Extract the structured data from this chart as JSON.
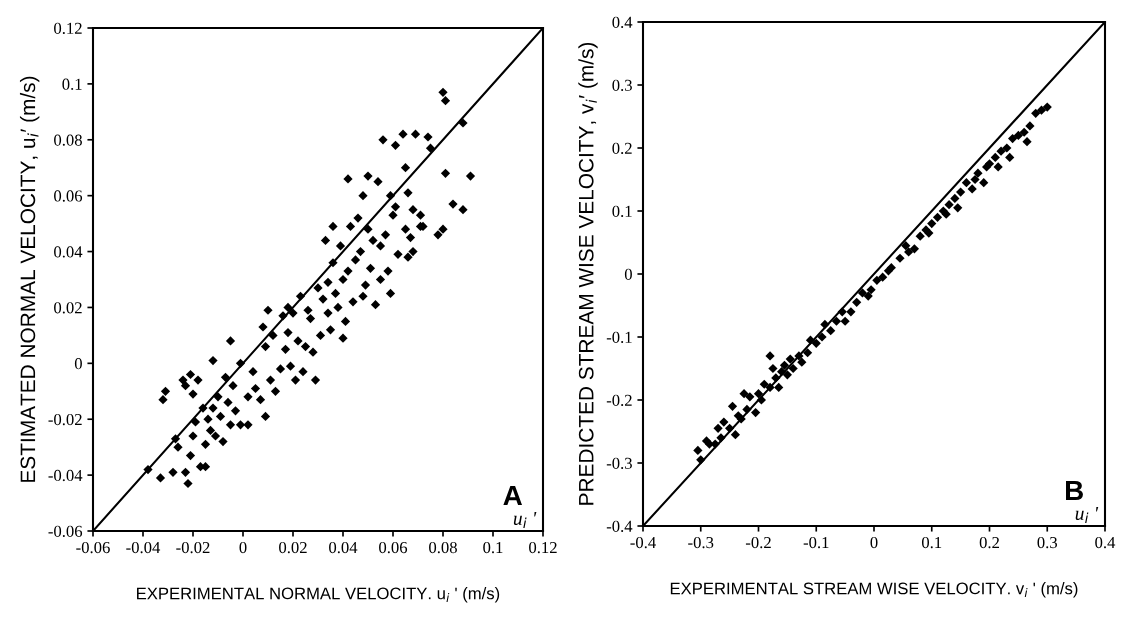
{
  "chart_data": [
    {
      "type": "scatter",
      "xlabel": "EXPERIMENTAL NORMAL VELOCITY. u$_{i}$ ' (m/s)",
      "ylabel": "ESTIMATED NORMAL VELOCITY, u$_{i}$′ (m/s)",
      "annotations": [
        "A",
        "u$_{i}$ '"
      ],
      "grid": false,
      "legend": false,
      "xlim": [
        -0.06,
        0.12
      ],
      "ylim": [
        -0.06,
        0.12
      ],
      "xticks": [
        -0.06,
        -0.04,
        -0.02,
        0,
        0.02,
        0.04,
        0.06,
        0.08,
        0.1,
        0.12
      ],
      "yticks": [
        -0.06,
        -0.04,
        -0.02,
        0,
        0.02,
        0.04,
        0.06,
        0.08,
        0.1,
        0.12
      ],
      "series": [
        {
          "color": "#000000",
          "marker": "diamond",
          "x": [
            -0.038,
            -0.033,
            -0.032,
            -0.031,
            -0.028,
            -0.027,
            -0.026,
            -0.024,
            -0.023,
            -0.023,
            -0.022,
            -0.021,
            -0.02,
            -0.021,
            -0.02,
            -0.019,
            -0.018,
            -0.017,
            -0.016,
            -0.015,
            -0.015,
            -0.014,
            -0.013,
            -0.012,
            -0.012,
            -0.011,
            -0.01,
            -0.009,
            -0.008,
            -0.007,
            -0.006,
            -0.005,
            -0.005,
            -0.004,
            -0.003,
            -0.001,
            -0.001,
            0.002,
            0.002,
            0.004,
            0.005,
            0.007,
            0.008,
            0.009,
            0.009,
            0.01,
            0.011,
            0.012,
            0.013,
            0.015,
            0.016,
            0.017,
            0.018,
            0.018,
            0.019,
            0.02,
            0.021,
            0.022,
            0.023,
            0.024,
            0.025,
            0.026,
            0.027,
            0.028,
            0.029,
            0.03,
            0.031,
            0.032,
            0.033,
            0.034,
            0.034,
            0.035,
            0.036,
            0.036,
            0.037,
            0.038,
            0.039,
            0.04,
            0.04,
            0.041,
            0.042,
            0.042,
            0.043,
            0.044,
            0.045,
            0.046,
            0.047,
            0.048,
            0.048,
            0.049,
            0.05,
            0.05,
            0.051,
            0.052,
            0.053,
            0.054,
            0.055,
            0.055,
            0.056,
            0.057,
            0.058,
            0.059,
            0.059,
            0.06,
            0.061,
            0.061,
            0.062,
            0.064,
            0.065,
            0.065,
            0.066,
            0.066,
            0.067,
            0.068,
            0.068,
            0.069,
            0.071,
            0.071,
            0.072,
            0.074,
            0.075,
            0.078,
            0.08,
            0.08,
            0.081,
            0.081,
            0.084,
            0.088,
            0.088,
            0.091
          ],
          "values": [
            -0.038,
            -0.041,
            -0.013,
            -0.01,
            -0.039,
            -0.027,
            -0.03,
            -0.006,
            -0.008,
            -0.039,
            -0.043,
            -0.004,
            -0.011,
            -0.033,
            -0.026,
            -0.021,
            -0.006,
            -0.037,
            -0.016,
            -0.029,
            -0.037,
            -0.02,
            -0.024,
            -0.016,
            0.001,
            -0.026,
            -0.012,
            -0.019,
            -0.028,
            -0.005,
            -0.014,
            0.008,
            -0.022,
            -0.008,
            -0.017,
            -0.022,
            0.0,
            -0.012,
            -0.022,
            -0.003,
            -0.009,
            -0.013,
            0.013,
            0.006,
            -0.019,
            0.019,
            -0.006,
            0.01,
            -0.01,
            -0.002,
            0.017,
            0.005,
            0.011,
            0.02,
            -0.001,
            0.018,
            -0.006,
            0.008,
            0.024,
            -0.003,
            0.006,
            0.019,
            0.016,
            0.004,
            -0.006,
            0.027,
            0.01,
            0.023,
            0.044,
            0.029,
            0.018,
            0.012,
            0.049,
            0.036,
            0.025,
            0.02,
            0.042,
            0.009,
            0.03,
            0.015,
            0.033,
            0.066,
            0.049,
            0.022,
            0.037,
            0.052,
            0.04,
            0.06,
            0.024,
            0.028,
            0.067,
            0.048,
            0.034,
            0.044,
            0.021,
            0.065,
            0.042,
            0.03,
            0.08,
            0.046,
            0.033,
            0.06,
            0.025,
            0.053,
            0.078,
            0.056,
            0.039,
            0.082,
            0.048,
            0.07,
            0.038,
            0.061,
            0.045,
            0.055,
            0.04,
            0.082,
            0.049,
            0.053,
            0.049,
            0.081,
            0.077,
            0.046,
            0.048,
            0.097,
            0.094,
            0.068,
            0.057,
            0.086,
            0.055,
            0.067
          ]
        },
        {
          "type": "line",
          "color": "#000000",
          "x": [
            -0.06,
            0.12
          ],
          "values": [
            -0.06,
            0.12
          ]
        }
      ]
    },
    {
      "type": "scatter",
      "xlabel": "EXPERIMENTAL STREAM WISE VELOCITY. v$_{i}$ ' (m/s)",
      "ylabel": "PREDICTED STREAM WISE VELOCITY, v$_{i}$′ (m/s)",
      "annotations": [
        "B",
        "u$_{i}$ '"
      ],
      "grid": false,
      "legend": false,
      "xlim": [
        -0.4,
        0.4
      ],
      "ylim": [
        -0.4,
        0.4
      ],
      "xticks": [
        -0.4,
        -0.3,
        -0.2,
        -0.1,
        0,
        0.1,
        0.2,
        0.3,
        0.4
      ],
      "yticks": [
        -0.4,
        -0.3,
        -0.2,
        -0.1,
        0,
        0.1,
        0.2,
        0.3,
        0.4
      ],
      "series": [
        {
          "color": "#000000",
          "marker": "diamond",
          "x": [
            -0.305,
            -0.3,
            -0.29,
            -0.285,
            -0.275,
            -0.27,
            -0.265,
            -0.26,
            -0.25,
            -0.245,
            -0.24,
            -0.235,
            -0.23,
            -0.225,
            -0.22,
            -0.215,
            -0.205,
            -0.2,
            -0.195,
            -0.19,
            -0.18,
            -0.18,
            -0.175,
            -0.17,
            -0.165,
            -0.16,
            -0.155,
            -0.15,
            -0.145,
            -0.14,
            -0.13,
            -0.125,
            -0.115,
            -0.11,
            -0.1,
            -0.09,
            -0.085,
            -0.075,
            -0.065,
            -0.055,
            -0.05,
            -0.04,
            -0.03,
            -0.02,
            -0.01,
            -0.005,
            0.005,
            0.015,
            0.025,
            0.03,
            0.045,
            0.055,
            0.06,
            0.07,
            0.08,
            0.09,
            0.095,
            0.1,
            0.11,
            0.12,
            0.125,
            0.13,
            0.14,
            0.145,
            0.15,
            0.16,
            0.17,
            0.175,
            0.18,
            0.19,
            0.195,
            0.2,
            0.21,
            0.215,
            0.22,
            0.23,
            0.235,
            0.24,
            0.25,
            0.26,
            0.265,
            0.27,
            0.28,
            0.29,
            0.3
          ],
          "values": [
            -0.28,
            -0.295,
            -0.265,
            -0.27,
            -0.27,
            -0.245,
            -0.26,
            -0.235,
            -0.245,
            -0.21,
            -0.255,
            -0.225,
            -0.23,
            -0.19,
            -0.215,
            -0.195,
            -0.22,
            -0.19,
            -0.2,
            -0.175,
            -0.13,
            -0.18,
            -0.15,
            -0.165,
            -0.18,
            -0.155,
            -0.145,
            -0.16,
            -0.135,
            -0.15,
            -0.13,
            -0.14,
            -0.125,
            -0.105,
            -0.11,
            -0.1,
            -0.08,
            -0.09,
            -0.075,
            -0.06,
            -0.075,
            -0.06,
            -0.045,
            -0.03,
            -0.035,
            -0.025,
            -0.01,
            -0.005,
            0.005,
            0.01,
            0.025,
            0.045,
            0.035,
            0.04,
            0.06,
            0.07,
            0.065,
            0.08,
            0.09,
            0.1,
            0.095,
            0.11,
            0.12,
            0.105,
            0.13,
            0.145,
            0.135,
            0.15,
            0.16,
            0.145,
            0.17,
            0.175,
            0.185,
            0.17,
            0.195,
            0.2,
            0.185,
            0.215,
            0.22,
            0.225,
            0.21,
            0.235,
            0.255,
            0.26,
            0.265
          ]
        },
        {
          "type": "line",
          "color": "#000000",
          "x": [
            -0.4,
            0.4
          ],
          "values": [
            -0.4,
            0.4
          ]
        }
      ]
    }
  ]
}
